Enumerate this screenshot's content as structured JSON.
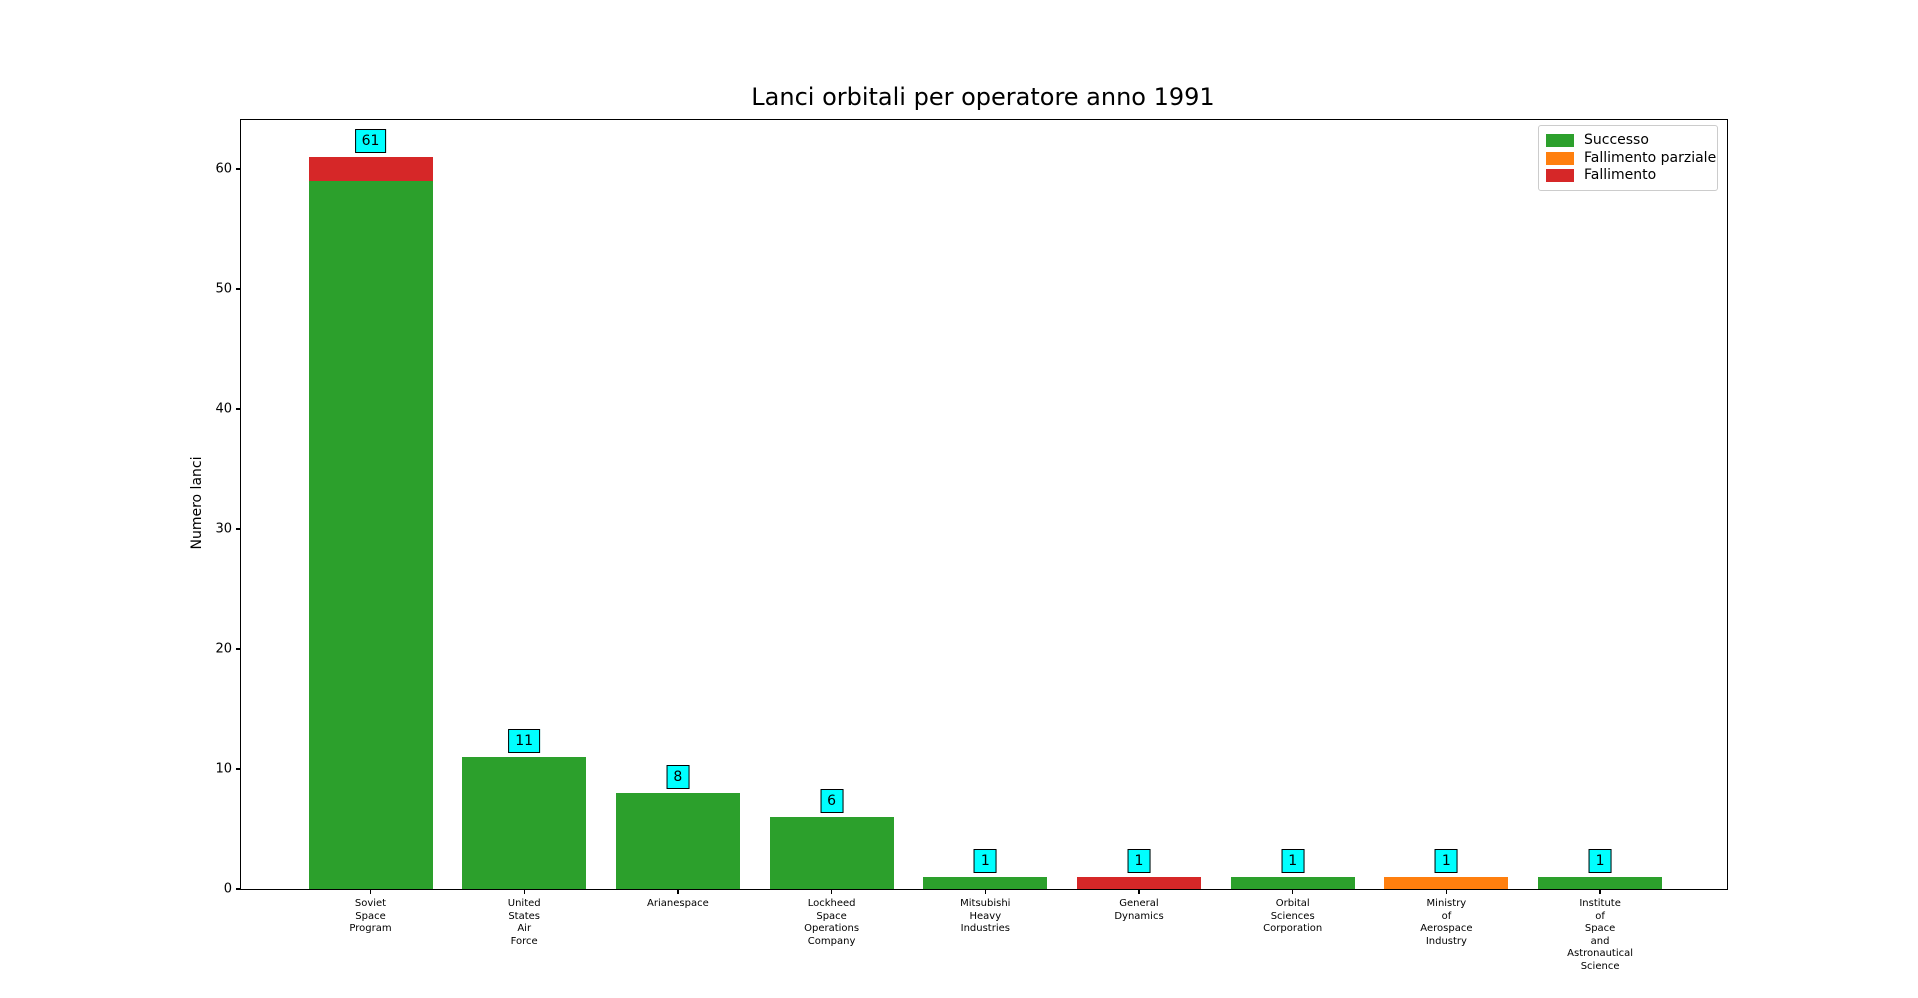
{
  "chart_data": {
    "type": "bar",
    "stacked": true,
    "title": "Lanci orbitali per operatore anno 1991",
    "ylabel": "Numero lanci",
    "xlabel": "",
    "ylim": [
      0,
      64.1
    ],
    "yticks": [
      0,
      10,
      20,
      30,
      40,
      50,
      60
    ],
    "grid": false,
    "legend_position": "upper right",
    "categories": [
      "Soviet\nSpace\nProgram",
      "United\nStates\nAir\nForce",
      "Arianespace",
      "Lockheed\nSpace\nOperations\nCompany",
      "Mitsubishi\nHeavy\nIndustries",
      "General\nDynamics",
      "Orbital\nSciences\nCorporation",
      "Ministry\nof\nAerospace\nIndustry",
      "Institute\nof\nSpace\nand\nAstronautical\nScience"
    ],
    "series": [
      {
        "name": "Successo",
        "color": "#2ca02c",
        "values": [
          59,
          11,
          8,
          6,
          1,
          0,
          1,
          0,
          1
        ]
      },
      {
        "name": "Fallimento parziale",
        "color": "#ff7f0e",
        "values": [
          0,
          0,
          0,
          0,
          0,
          0,
          0,
          1,
          0
        ]
      },
      {
        "name": "Fallimento",
        "color": "#d62728",
        "values": [
          2,
          0,
          0,
          0,
          0,
          1,
          0,
          0,
          0
        ]
      }
    ],
    "totals": [
      61,
      11,
      8,
      6,
      1,
      1,
      1,
      1,
      1
    ],
    "bar_total_labels": [
      "61",
      "11",
      "8",
      "6",
      "1",
      "1",
      "1",
      "1",
      "1"
    ],
    "annotation_style": {
      "bg": "#00ffff",
      "border": "#000000"
    }
  }
}
